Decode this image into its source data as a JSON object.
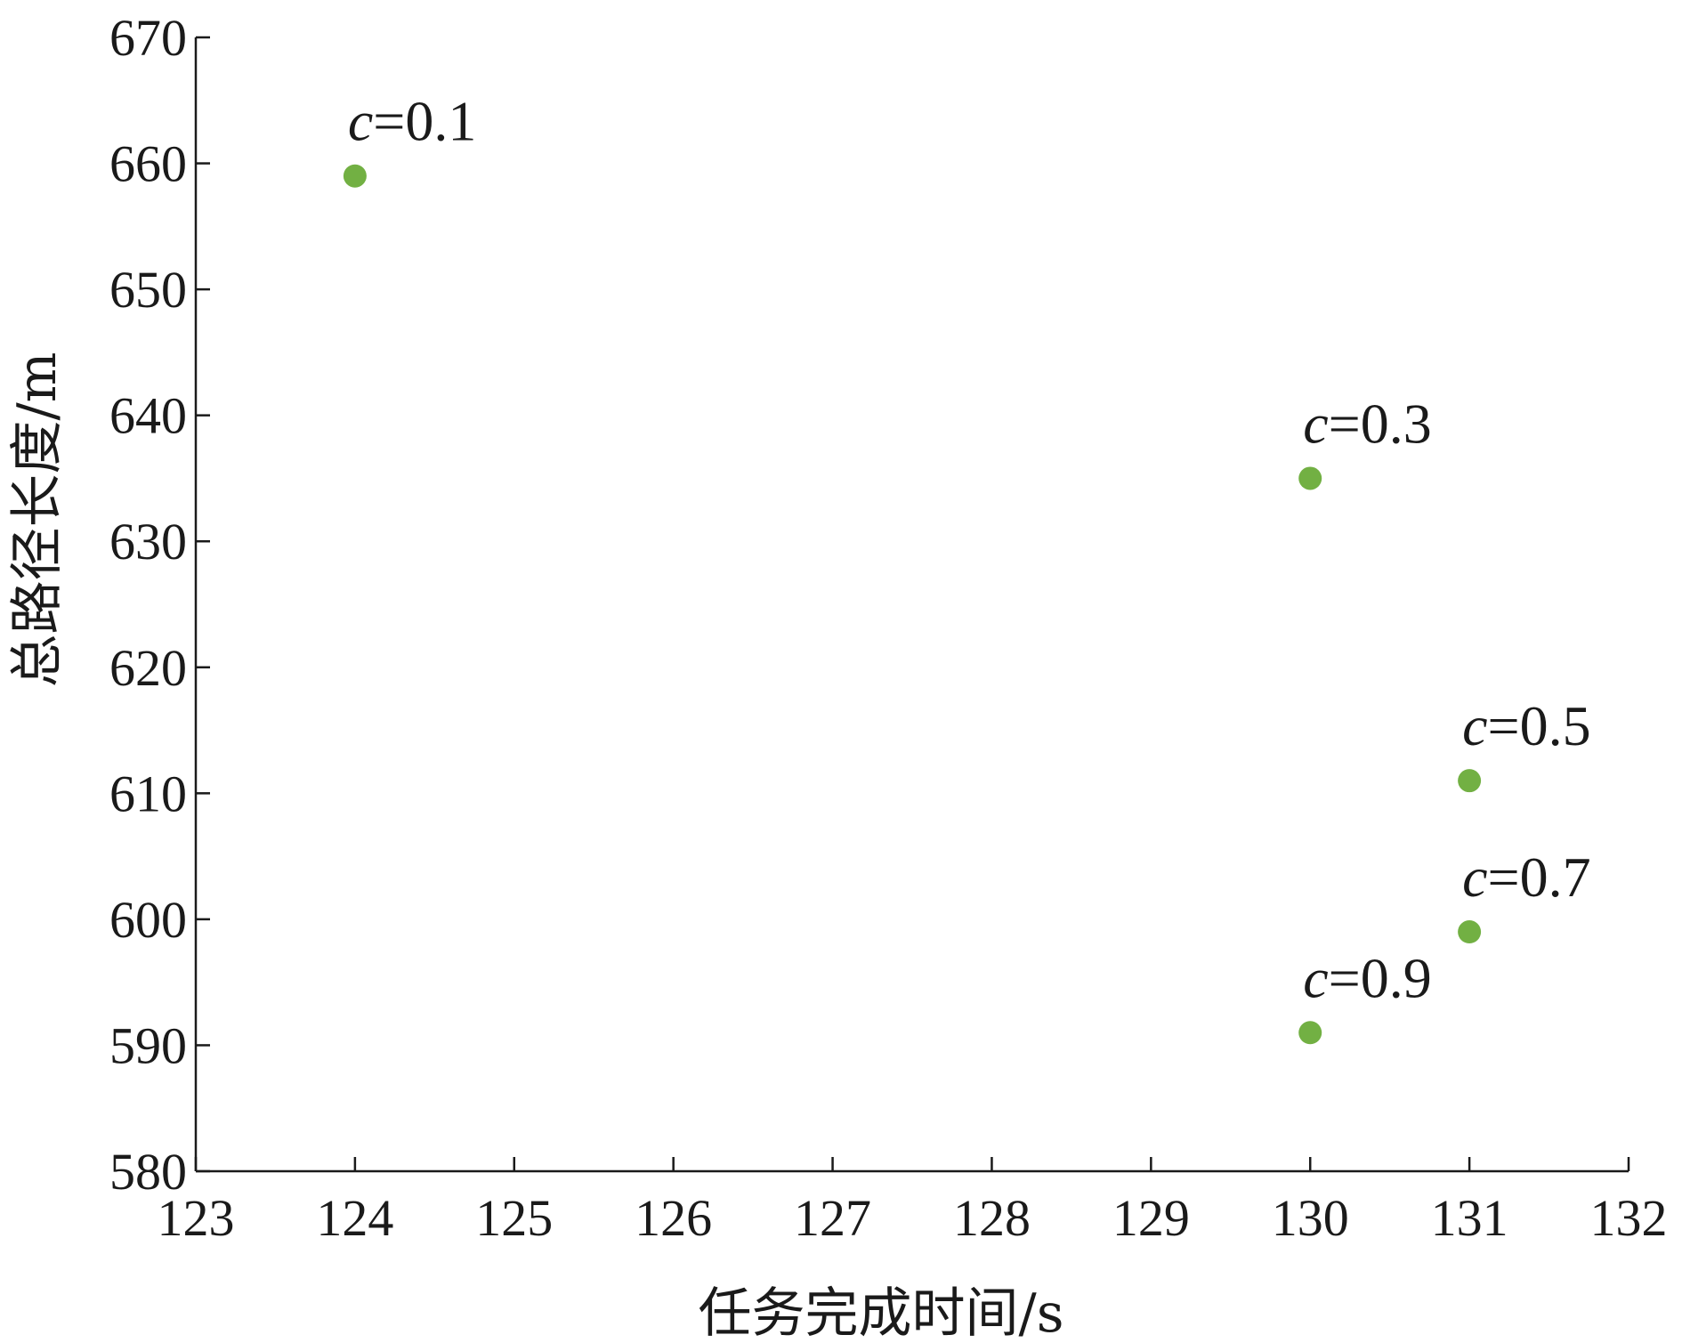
{
  "chart_data": {
    "type": "scatter",
    "xlabel": "任务完成时间/s",
    "ylabel": "总路径长度/m",
    "xlim": [
      123,
      132
    ],
    "ylim": [
      580,
      670
    ],
    "xticks": [
      123,
      124,
      125,
      126,
      127,
      128,
      129,
      130,
      131,
      132
    ],
    "yticks": [
      580,
      590,
      600,
      610,
      620,
      630,
      640,
      650,
      660,
      670
    ],
    "grid": false,
    "points": [
      {
        "x": 124,
        "y": 659,
        "var": "c",
        "rest": "=0.1"
      },
      {
        "x": 130,
        "y": 635,
        "var": "c",
        "rest": "=0.3"
      },
      {
        "x": 131,
        "y": 611,
        "var": "c",
        "rest": "=0.5"
      },
      {
        "x": 131,
        "y": 599,
        "var": "c",
        "rest": "=0.7"
      },
      {
        "x": 130,
        "y": 591,
        "var": "c",
        "rest": "=0.9"
      }
    ],
    "marker_color": "#72b043",
    "axis_color": "#1a1a1a"
  }
}
